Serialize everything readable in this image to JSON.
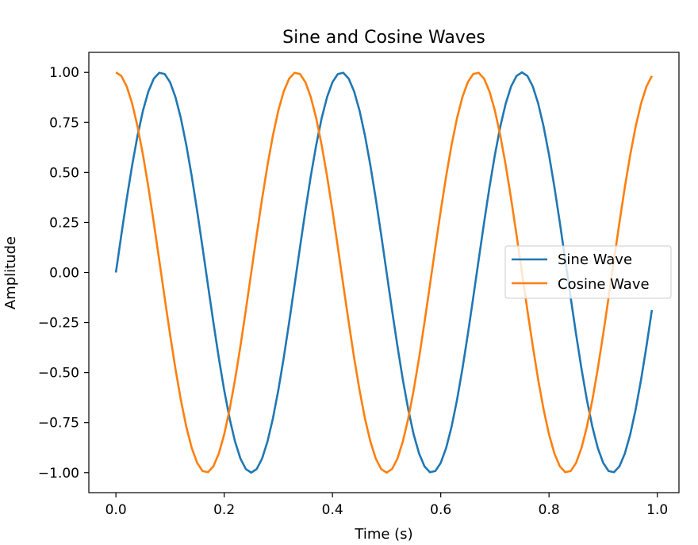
{
  "chart_data": {
    "type": "line",
    "title": "Sine and Cosine Waves",
    "xlabel": "Time (s)",
    "ylabel": "Amplitude",
    "xlim": [
      -0.05,
      1.04
    ],
    "ylim": [
      -1.1,
      1.1
    ],
    "x_ticks": [
      0.0,
      0.2,
      0.4,
      0.6,
      0.8,
      1.0
    ],
    "x_tick_labels": [
      "0.0",
      "0.2",
      "0.4",
      "0.6",
      "0.8",
      "1.0"
    ],
    "y_ticks": [
      -1.0,
      -0.75,
      -0.5,
      -0.25,
      0.0,
      0.25,
      0.5,
      0.75,
      1.0
    ],
    "y_tick_labels": [
      "−1.00",
      "−0.75",
      "−0.50",
      "−0.25",
      "0.00",
      "0.25",
      "0.50",
      "0.75",
      "1.00"
    ],
    "grid": false,
    "legend_position": "center-right",
    "x": {
      "start": 0.0,
      "stop": 0.99,
      "step": 0.01
    },
    "series": [
      {
        "name": "Sine Wave",
        "function": "sin(2π·3·t)",
        "frequency_hz": 3,
        "amplitude": 1,
        "color": "#1f77b4"
      },
      {
        "name": "Cosine Wave",
        "function": "cos(2π·3·t)",
        "frequency_hz": 3,
        "amplitude": 1,
        "color": "#ff7f0e"
      }
    ]
  }
}
